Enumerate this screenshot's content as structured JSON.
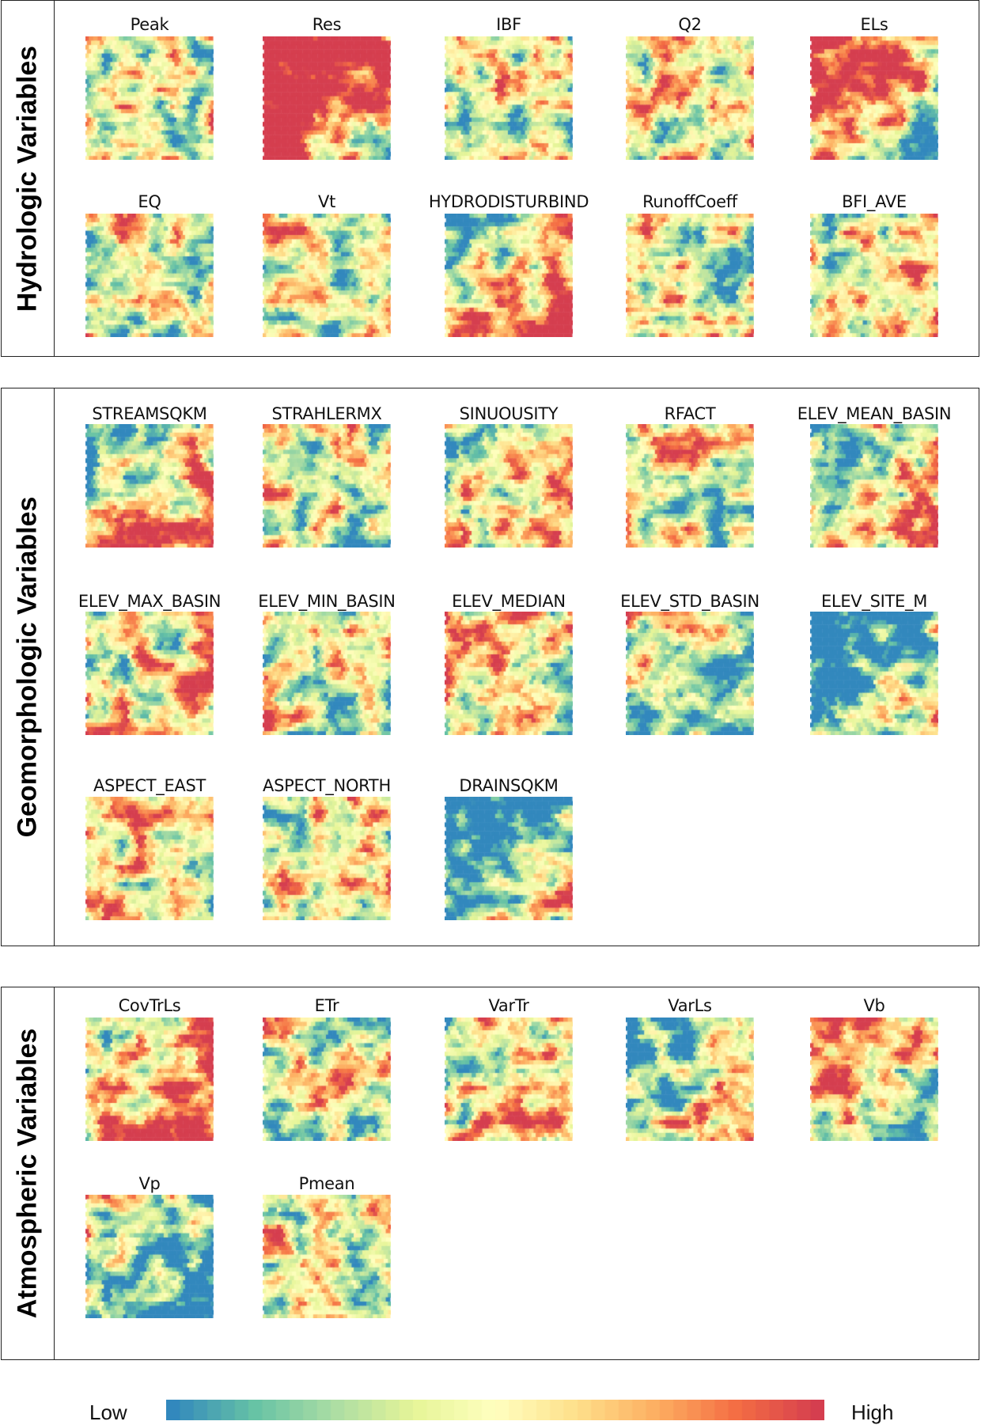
{
  "sections": [
    {
      "label": "Hydrologic Variables",
      "panels": [
        "Peak",
        "Res",
        "IBF",
        "Q2",
        "ELs",
        "EQ",
        "Vt",
        "HYDRODISTURBIND",
        "RunoffCoeff",
        "BFI_AVE"
      ]
    },
    {
      "label": "Geomorphologic Variables",
      "panels": [
        "STREAMSQKM",
        "STRAHLERMX",
        "SINUOUSITY",
        "RFACT",
        "ELEV_MEAN_BASIN",
        "ELEV_MAX_BASIN",
        "ELEV_MIN_BASIN",
        "ELEV_MEDIAN",
        "ELEV_STD_BASIN",
        "ELEV_SITE_M",
        "ASPECT_EAST",
        "ASPECT_NORTH",
        "DRAINSQKM"
      ]
    },
    {
      "label": "Atmospheric Variables",
      "panels": [
        "CovTrLs",
        "ETr",
        "VarTr",
        "VarLs",
        "Vb",
        "Vp",
        "Pmean"
      ]
    }
  ],
  "colorbar": {
    "low_label": "Low",
    "high_label": "High",
    "colors": [
      "#3288bd",
      "#66c2a5",
      "#abdda4",
      "#e6f598",
      "#ffffbf",
      "#fee08b",
      "#fdae61",
      "#f46d43",
      "#d53e4f"
    ]
  }
}
